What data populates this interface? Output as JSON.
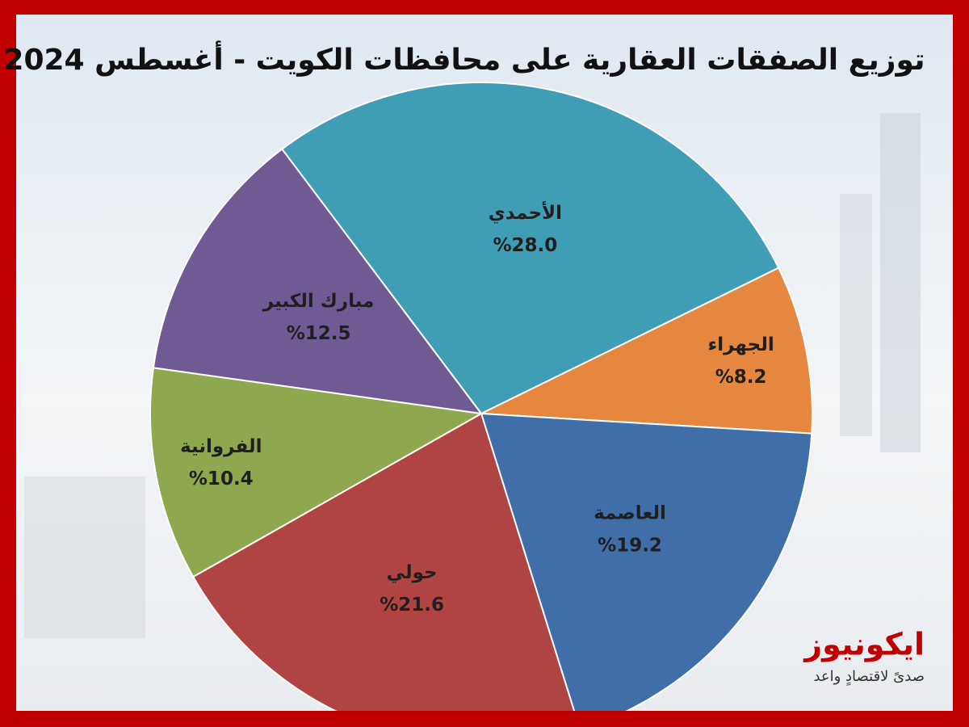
{
  "chart_data": {
    "type": "pie",
    "title": "توزيع الصفقات العقارية على محافظات الكويت - أغسطس 2024",
    "categories": [
      "الأحمدي",
      "الجهراء",
      "العاصمة",
      "حولي",
      "الفروانية",
      "مبارك الكبير"
    ],
    "values": [
      28.0,
      8.2,
      19.2,
      21.6,
      10.4,
      12.5
    ],
    "value_labels": [
      "%28.0",
      "%8.2",
      "%19.2",
      "%21.6",
      "%10.4",
      "%12.5"
    ],
    "colors": [
      "#3f9db5",
      "#e5873e",
      "#3f6ea8",
      "#b04442",
      "#8fa84f",
      "#6f5a94"
    ]
  },
  "logo": {
    "name": "ايكونيوز",
    "tagline": "صدىً لاقتصادٍ واعد"
  }
}
